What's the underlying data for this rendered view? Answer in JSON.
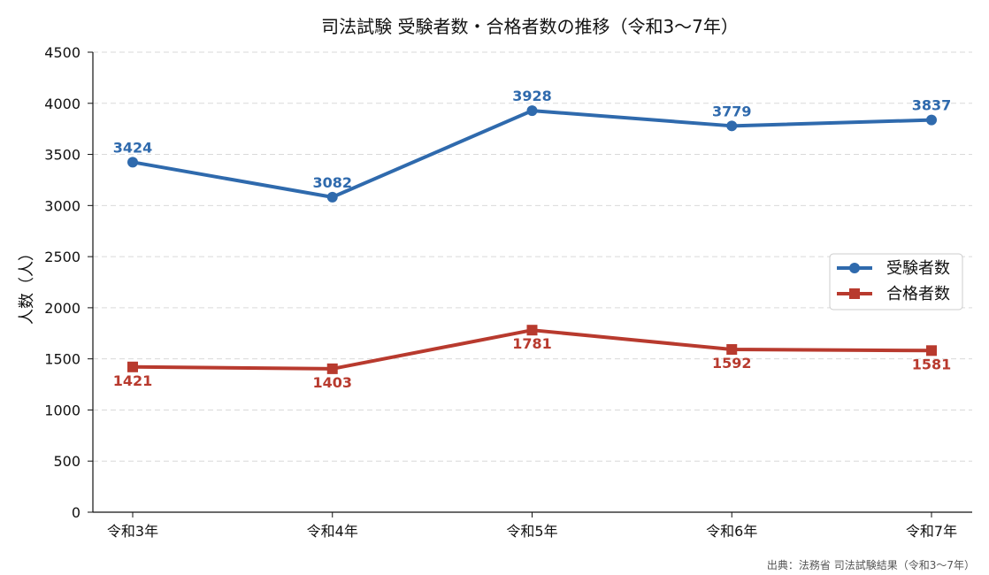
{
  "chart_data": {
    "type": "line",
    "title": "司法試験 受験者数・合格者数の推移（令和3〜7年）",
    "xlabel": "",
    "ylabel": "人数（人）",
    "categories": [
      "令和3年",
      "令和4年",
      "令和5年",
      "令和6年",
      "令和7年"
    ],
    "ylim": [
      0,
      4500
    ],
    "yticks": [
      0,
      500,
      1000,
      1500,
      2000,
      2500,
      3000,
      3500,
      4000,
      4500
    ],
    "grid": "horizontal-dashed",
    "legend_position": "right",
    "series": [
      {
        "name": "受験者数",
        "values": [
          3424,
          3082,
          3928,
          3779,
          3837
        ],
        "color": "#2f6aad",
        "marker": "circle",
        "label_position": "above"
      },
      {
        "name": "合格者数",
        "values": [
          1421,
          1403,
          1781,
          1592,
          1581
        ],
        "color": "#b83a2e",
        "marker": "square",
        "label_position": "below"
      }
    ]
  },
  "source_note": "出典：法務省 司法試験結果（令和3〜7年）"
}
